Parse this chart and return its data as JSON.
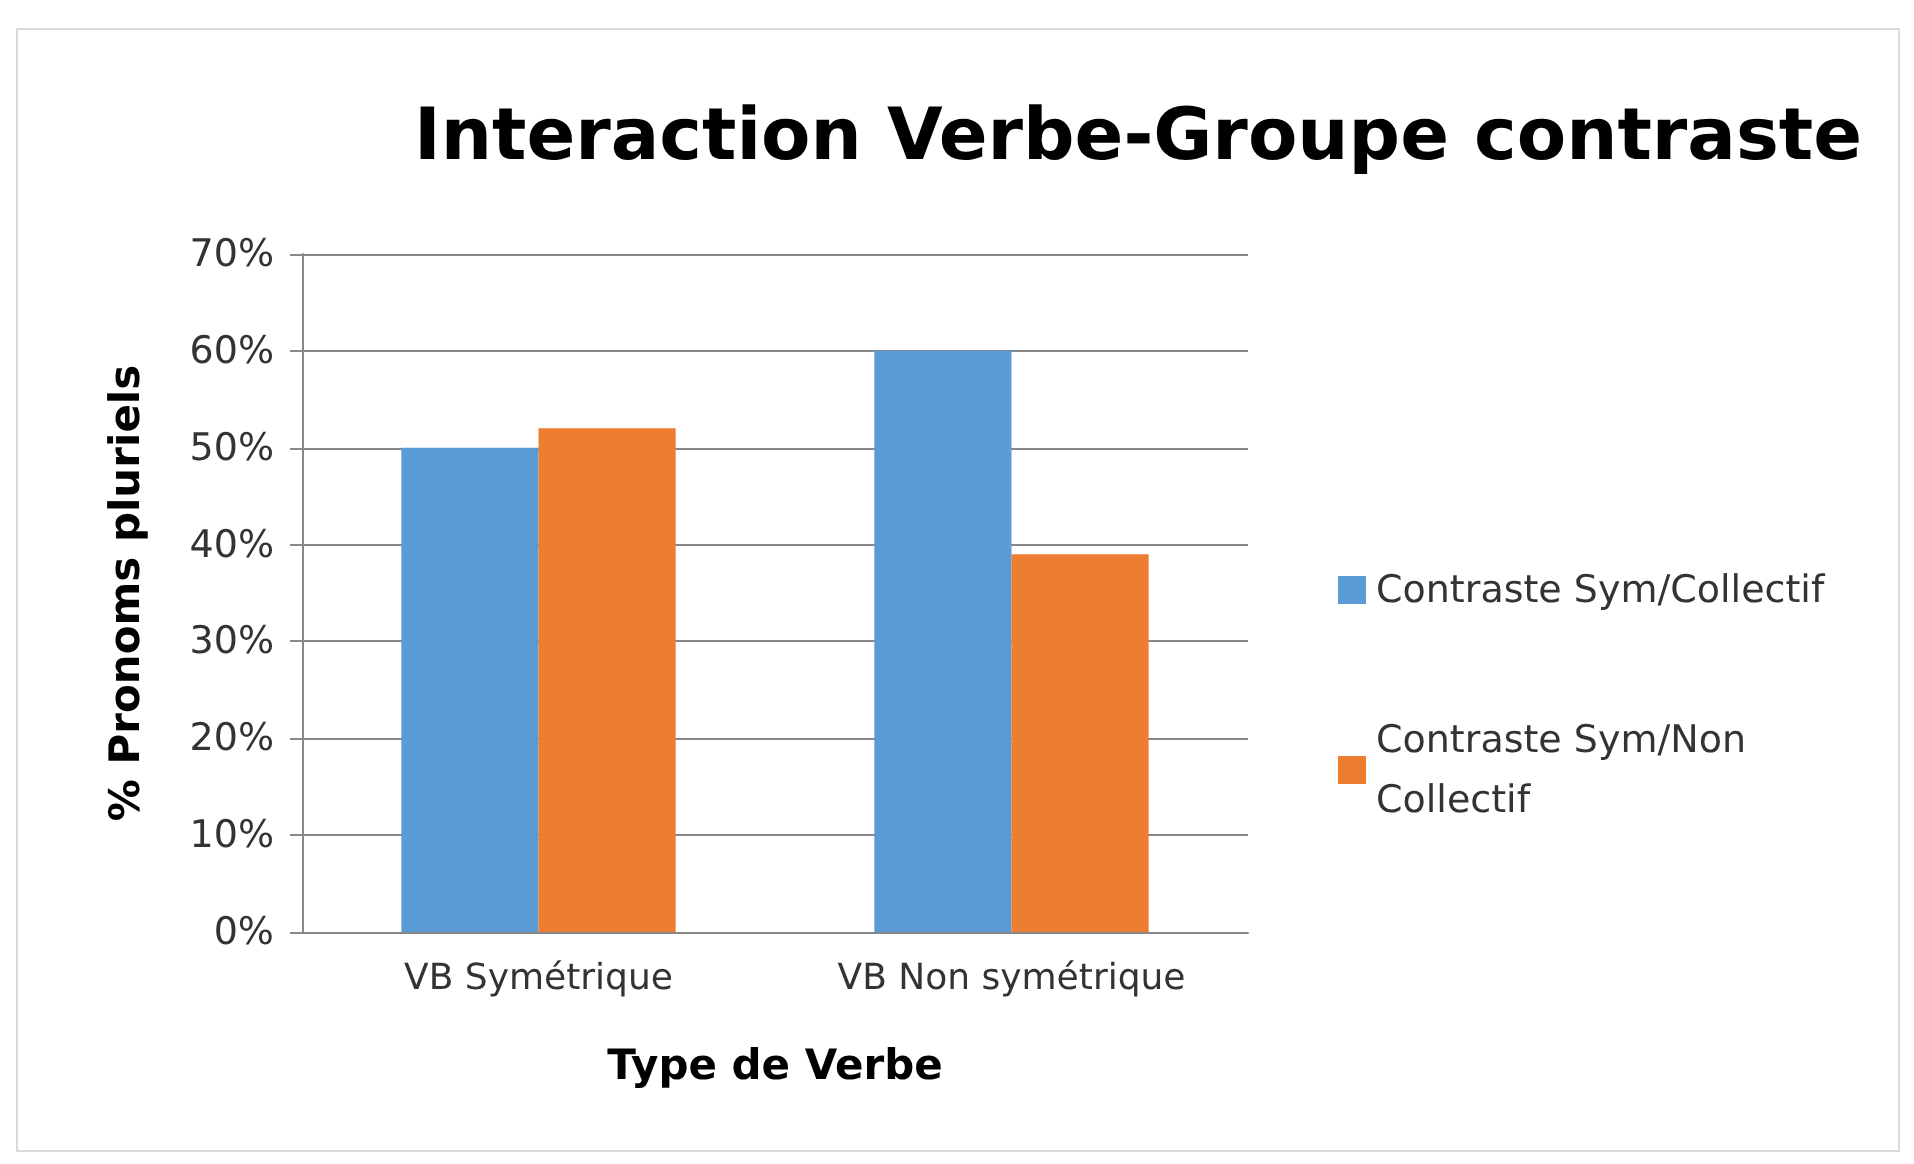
{
  "chart_data": {
    "type": "bar",
    "title": "Interaction Verbe-Groupe contraste",
    "xlabel": "Type de Verbe",
    "ylabel": "% Pronoms pluriels",
    "categories": [
      "VB Symétrique",
      "VB Non symétrique"
    ],
    "series": [
      {
        "name": "Contraste Sym/Collectif",
        "color": "#5b9bd5",
        "values": [
          50,
          60
        ]
      },
      {
        "name": "Contraste Sym/Non Collectif",
        "color": "#ed7d31",
        "values": [
          52,
          39
        ]
      }
    ],
    "ylim": [
      0,
      70
    ],
    "yticks": [
      {
        "value": 0,
        "label": "0%"
      },
      {
        "value": 10,
        "label": "10%"
      },
      {
        "value": 20,
        "label": "20%"
      },
      {
        "value": 30,
        "label": "30%"
      },
      {
        "value": 40,
        "label": "40%"
      },
      {
        "value": 50,
        "label": "50%"
      },
      {
        "value": 60,
        "label": "60%"
      },
      {
        "value": 70,
        "label": "70%"
      }
    ],
    "grid": "y",
    "legend": "right"
  }
}
